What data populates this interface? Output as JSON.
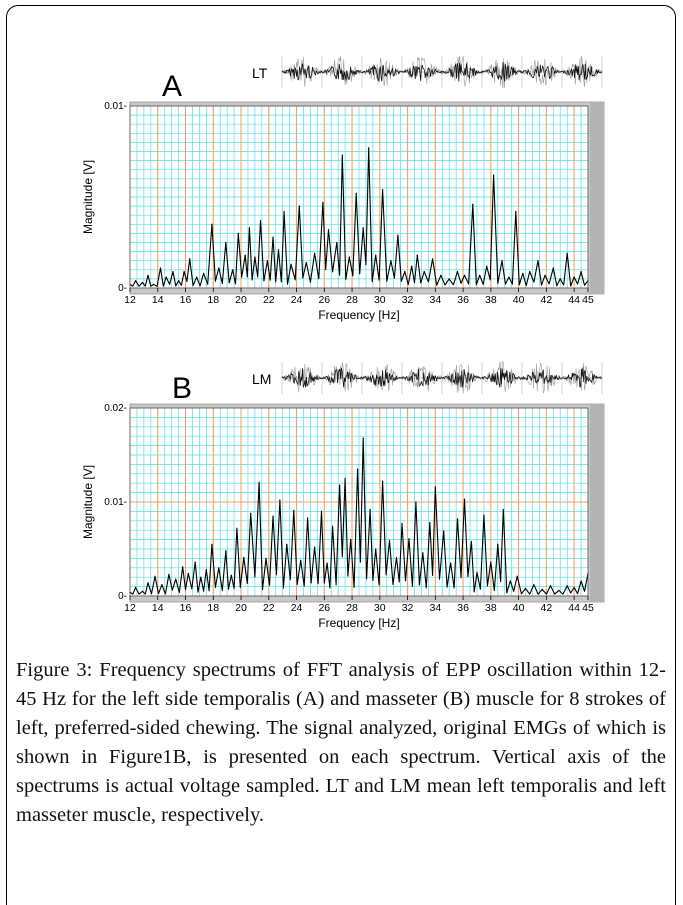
{
  "caption": "Figure 3: Frequency spectrums of FFT analysis of EPP oscillation within 12-45 Hz for the left side temporalis (A) and masseter (B) muscle for 8 strokes of left, preferred-sided chewing. The signal analyzed, original EMGs of which is shown in Figure1B, is presented on each spectrum. Vertical axis of the spectrums is actual voltage sampled. LT and LM mean left temporalis and left masseter muscle, respectively.",
  "colors": {
    "plot_bg": "#ffffff",
    "minor_grid": "#55e0e0",
    "major_grid": "#f0a060",
    "trace": "#000000",
    "frame_gray": "#c8c8c8",
    "emg_trace": "#111111",
    "emg_bg_noise": "#9a9a9a"
  },
  "chart_data": [
    {
      "type": "line",
      "panel_letter": "A",
      "emg_label": "LT",
      "xlabel": "Frequency  [Hz]",
      "ylabel": "Magnitude  [V]",
      "xlim": [
        12,
        45
      ],
      "ylim": [
        0,
        0.01
      ],
      "ytick_labels": [
        "0.01-",
        "0-"
      ],
      "ytick_values": [
        0.01,
        0
      ],
      "xtick_values": [
        12,
        14,
        16,
        18,
        20,
        22,
        24,
        26,
        28,
        30,
        32,
        34,
        36,
        38,
        40,
        42,
        44,
        45
      ],
      "xtick_labels": [
        "12",
        "14",
        "16",
        "18",
        "20",
        "22",
        "24",
        "26",
        "28",
        "30",
        "32",
        "34",
        "36",
        "38",
        "40",
        "42",
        "44",
        "45"
      ],
      "grid": true,
      "peaks": [
        [
          12.0,
          0.0002
        ],
        [
          12.4,
          0.0004
        ],
        [
          12.9,
          0.0003
        ],
        [
          13.3,
          0.0007
        ],
        [
          13.7,
          0.0002
        ],
        [
          14.2,
          0.0011
        ],
        [
          14.6,
          0.0006
        ],
        [
          15.1,
          0.0009
        ],
        [
          15.5,
          0.0004
        ],
        [
          15.9,
          0.0009
        ],
        [
          16.3,
          0.0016
        ],
        [
          16.8,
          0.0006
        ],
        [
          17.3,
          0.0008
        ],
        [
          17.9,
          0.0035
        ],
        [
          18.4,
          0.0011
        ],
        [
          18.9,
          0.0025
        ],
        [
          19.4,
          0.001
        ],
        [
          19.8,
          0.003
        ],
        [
          20.3,
          0.0018
        ],
        [
          20.6,
          0.0033
        ],
        [
          21.0,
          0.0017
        ],
        [
          21.4,
          0.0037
        ],
        [
          21.9,
          0.0015
        ],
        [
          22.3,
          0.0028
        ],
        [
          22.7,
          0.0021
        ],
        [
          23.1,
          0.0042
        ],
        [
          23.6,
          0.0013
        ],
        [
          24.2,
          0.0045
        ],
        [
          24.7,
          0.0014
        ],
        [
          25.3,
          0.0019
        ],
        [
          25.9,
          0.0047
        ],
        [
          26.3,
          0.0032
        ],
        [
          26.9,
          0.0025
        ],
        [
          27.3,
          0.0073
        ],
        [
          27.8,
          0.0017
        ],
        [
          28.3,
          0.0052
        ],
        [
          28.8,
          0.0033
        ],
        [
          29.2,
          0.0077
        ],
        [
          29.7,
          0.0018
        ],
        [
          30.2,
          0.0054
        ],
        [
          30.8,
          0.0015
        ],
        [
          31.3,
          0.0029
        ],
        [
          31.8,
          0.0009
        ],
        [
          32.3,
          0.0012
        ],
        [
          32.7,
          0.0018
        ],
        [
          33.2,
          0.0009
        ],
        [
          33.8,
          0.0016
        ],
        [
          34.4,
          0.0007
        ],
        [
          35.0,
          0.0005
        ],
        [
          35.6,
          0.0009
        ],
        [
          36.1,
          0.0007
        ],
        [
          36.7,
          0.0046
        ],
        [
          37.2,
          0.0007
        ],
        [
          37.7,
          0.0012
        ],
        [
          38.2,
          0.0062
        ],
        [
          38.8,
          0.0015
        ],
        [
          39.3,
          0.0006
        ],
        [
          39.8,
          0.0042
        ],
        [
          40.3,
          0.0008
        ],
        [
          40.8,
          0.0009
        ],
        [
          41.4,
          0.0015
        ],
        [
          41.9,
          0.0007
        ],
        [
          42.5,
          0.0011
        ],
        [
          43.0,
          0.0005
        ],
        [
          43.5,
          0.0019
        ],
        [
          44.0,
          0.0006
        ],
        [
          44.5,
          0.0009
        ],
        [
          45.0,
          0.0004
        ]
      ]
    },
    {
      "type": "line",
      "panel_letter": "B",
      "emg_label": "LM",
      "xlabel": "Frequency  [Hz]",
      "ylabel": "Magnitude  [V]",
      "xlim": [
        12,
        45
      ],
      "ylim": [
        0,
        0.02
      ],
      "ytick_labels": [
        "0.02-",
        "0.01-",
        "0-"
      ],
      "ytick_values": [
        0.02,
        0.01,
        0
      ],
      "xtick_values": [
        12,
        14,
        16,
        18,
        20,
        22,
        24,
        26,
        28,
        30,
        32,
        34,
        36,
        38,
        40,
        42,
        44,
        45
      ],
      "xtick_labels": [
        "12",
        "14",
        "16",
        "18",
        "20",
        "22",
        "24",
        "26",
        "28",
        "30",
        "32",
        "34",
        "36",
        "38",
        "40",
        "42",
        "44",
        "45"
      ],
      "grid": true,
      "peaks": [
        [
          12.0,
          0.0004
        ],
        [
          12.4,
          0.0009
        ],
        [
          12.9,
          0.0005
        ],
        [
          13.3,
          0.0014
        ],
        [
          13.8,
          0.0021
        ],
        [
          14.3,
          0.0012
        ],
        [
          14.8,
          0.0023
        ],
        [
          15.3,
          0.0018
        ],
        [
          15.8,
          0.0031
        ],
        [
          16.2,
          0.0024
        ],
        [
          16.7,
          0.0036
        ],
        [
          17.1,
          0.002
        ],
        [
          17.5,
          0.0028
        ],
        [
          17.9,
          0.0055
        ],
        [
          18.4,
          0.003
        ],
        [
          18.9,
          0.0048
        ],
        [
          19.3,
          0.0022
        ],
        [
          19.7,
          0.0072
        ],
        [
          20.2,
          0.0041
        ],
        [
          20.7,
          0.0088
        ],
        [
          21.3,
          0.0121
        ],
        [
          21.8,
          0.004
        ],
        [
          22.3,
          0.0085
        ],
        [
          22.8,
          0.0102
        ],
        [
          23.3,
          0.0055
        ],
        [
          23.8,
          0.0091
        ],
        [
          24.3,
          0.0038
        ],
        [
          24.8,
          0.0083
        ],
        [
          25.3,
          0.0052
        ],
        [
          25.8,
          0.009
        ],
        [
          26.2,
          0.0035
        ],
        [
          26.6,
          0.0074
        ],
        [
          27.1,
          0.0118
        ],
        [
          27.5,
          0.0125
        ],
        [
          27.9,
          0.006
        ],
        [
          28.4,
          0.0135
        ],
        [
          28.8,
          0.0168
        ],
        [
          29.3,
          0.0092
        ],
        [
          29.7,
          0.005
        ],
        [
          30.2,
          0.0122
        ],
        [
          30.7,
          0.0059
        ],
        [
          31.2,
          0.0041
        ],
        [
          31.6,
          0.0077
        ],
        [
          32.1,
          0.0061
        ],
        [
          32.6,
          0.01
        ],
        [
          33.1,
          0.0046
        ],
        [
          33.6,
          0.0078
        ],
        [
          34.0,
          0.0116
        ],
        [
          34.6,
          0.0069
        ],
        [
          35.1,
          0.0035
        ],
        [
          35.6,
          0.0082
        ],
        [
          36.1,
          0.0103
        ],
        [
          36.6,
          0.0058
        ],
        [
          37.0,
          0.0025
        ],
        [
          37.5,
          0.0086
        ],
        [
          38.0,
          0.0036
        ],
        [
          38.5,
          0.0055
        ],
        [
          38.9,
          0.0092
        ],
        [
          39.4,
          0.0016
        ],
        [
          39.9,
          0.0021
        ],
        [
          40.5,
          0.0008
        ],
        [
          41.1,
          0.0012
        ],
        [
          41.7,
          0.0007
        ],
        [
          42.3,
          0.0011
        ],
        [
          42.9,
          0.0006
        ],
        [
          43.5,
          0.0011
        ],
        [
          44.0,
          0.0009
        ],
        [
          44.5,
          0.0016
        ],
        [
          45.0,
          0.0024
        ]
      ]
    }
  ]
}
